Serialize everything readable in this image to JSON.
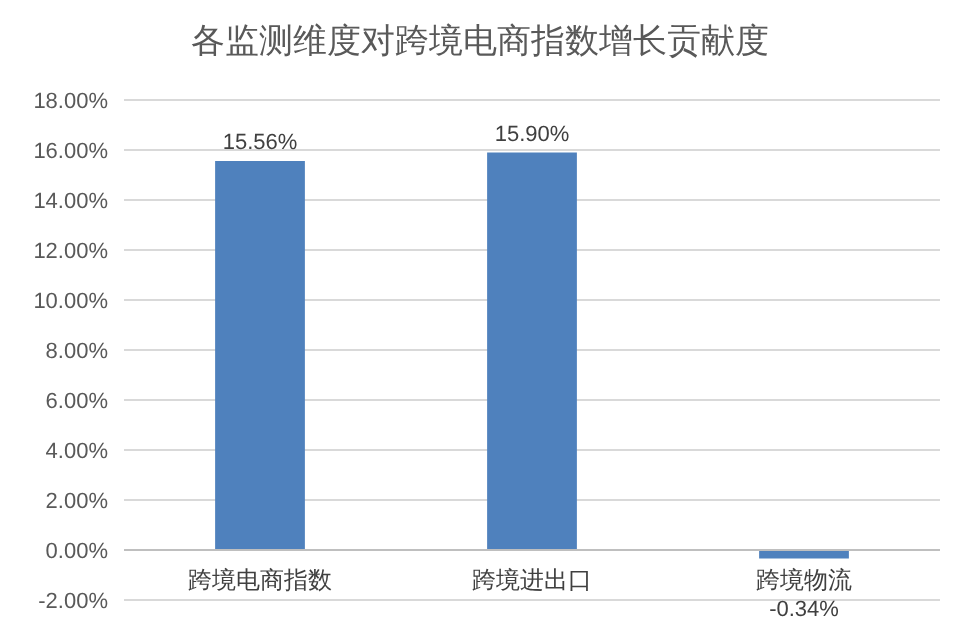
{
  "chart_data": {
    "type": "bar",
    "title": "各监测维度对跨境电商指数增长贡献度",
    "categories": [
      "跨境电商指数",
      "跨境进出口",
      "跨境物流"
    ],
    "values": [
      15.56,
      15.9,
      -0.34
    ],
    "value_labels": [
      "15.56%",
      "15.90%",
      "-0.34%"
    ],
    "color": "#4f81bd",
    "ylim": [
      -2,
      18
    ],
    "yticks": [
      {
        "value": -2,
        "label": "-2.00%"
      },
      {
        "value": 0,
        "label": "0.00%"
      },
      {
        "value": 2,
        "label": "2.00%"
      },
      {
        "value": 4,
        "label": "4.00%"
      },
      {
        "value": 6,
        "label": "6.00%"
      },
      {
        "value": 8,
        "label": "8.00%"
      },
      {
        "value": 10,
        "label": "10.00%"
      },
      {
        "value": 12,
        "label": "12.00%"
      },
      {
        "value": 14,
        "label": "14.00%"
      },
      {
        "value": 16,
        "label": "16.00%"
      },
      {
        "value": 18,
        "label": "18.00%"
      }
    ],
    "grid": "y"
  }
}
